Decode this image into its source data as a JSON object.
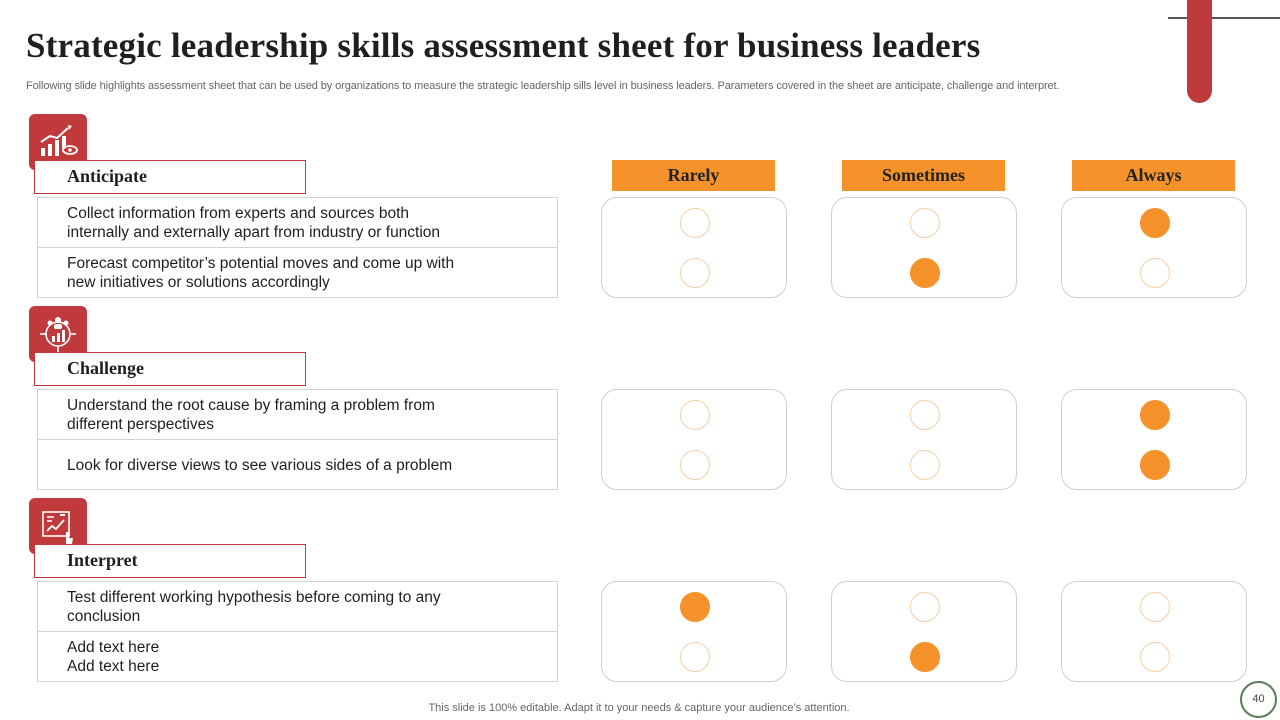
{
  "title": "Strategic leadership skills assessment sheet for business leaders",
  "subtitle": "Following slide highlights assessment sheet that can be used by organizations to measure the strategic leadership sills level in business leaders. Parameters covered in the sheet are anticipate, challenge and interpret.",
  "columns": [
    "Rarely",
    "Sometimes",
    "Always"
  ],
  "colors": {
    "accent_red": "#c0393b",
    "accent_orange": "#f5922a"
  },
  "sections": [
    {
      "label": "Anticipate",
      "icon": "growth-chart-icon",
      "items": [
        {
          "text": "Collect information from experts and sources both internally and externally  apart from industry or function",
          "rating": "Always"
        },
        {
          "text": "Forecast competitor’s potential moves and come up with new initiatives or solutions accordingly",
          "rating": "Sometimes"
        }
      ]
    },
    {
      "label": "Challenge",
      "icon": "team-analytics-icon",
      "items": [
        {
          "text": "Understand the root cause by framing a problem from different perspectives",
          "rating": "Always"
        },
        {
          "text": "Look for diverse views to see various sides of a problem",
          "rating": "Always"
        }
      ]
    },
    {
      "label": "Interpret",
      "icon": "report-analysis-icon",
      "items": [
        {
          "text": "Test different working hypothesis before coming to any conclusion",
          "rating": "Rarely"
        },
        {
          "text": "Add text here\nAdd text here",
          "rating": "Sometimes"
        }
      ]
    }
  ],
  "footer": "This slide is 100% editable. Adapt it to your needs & capture your audience’s attention.",
  "page_number": "40"
}
